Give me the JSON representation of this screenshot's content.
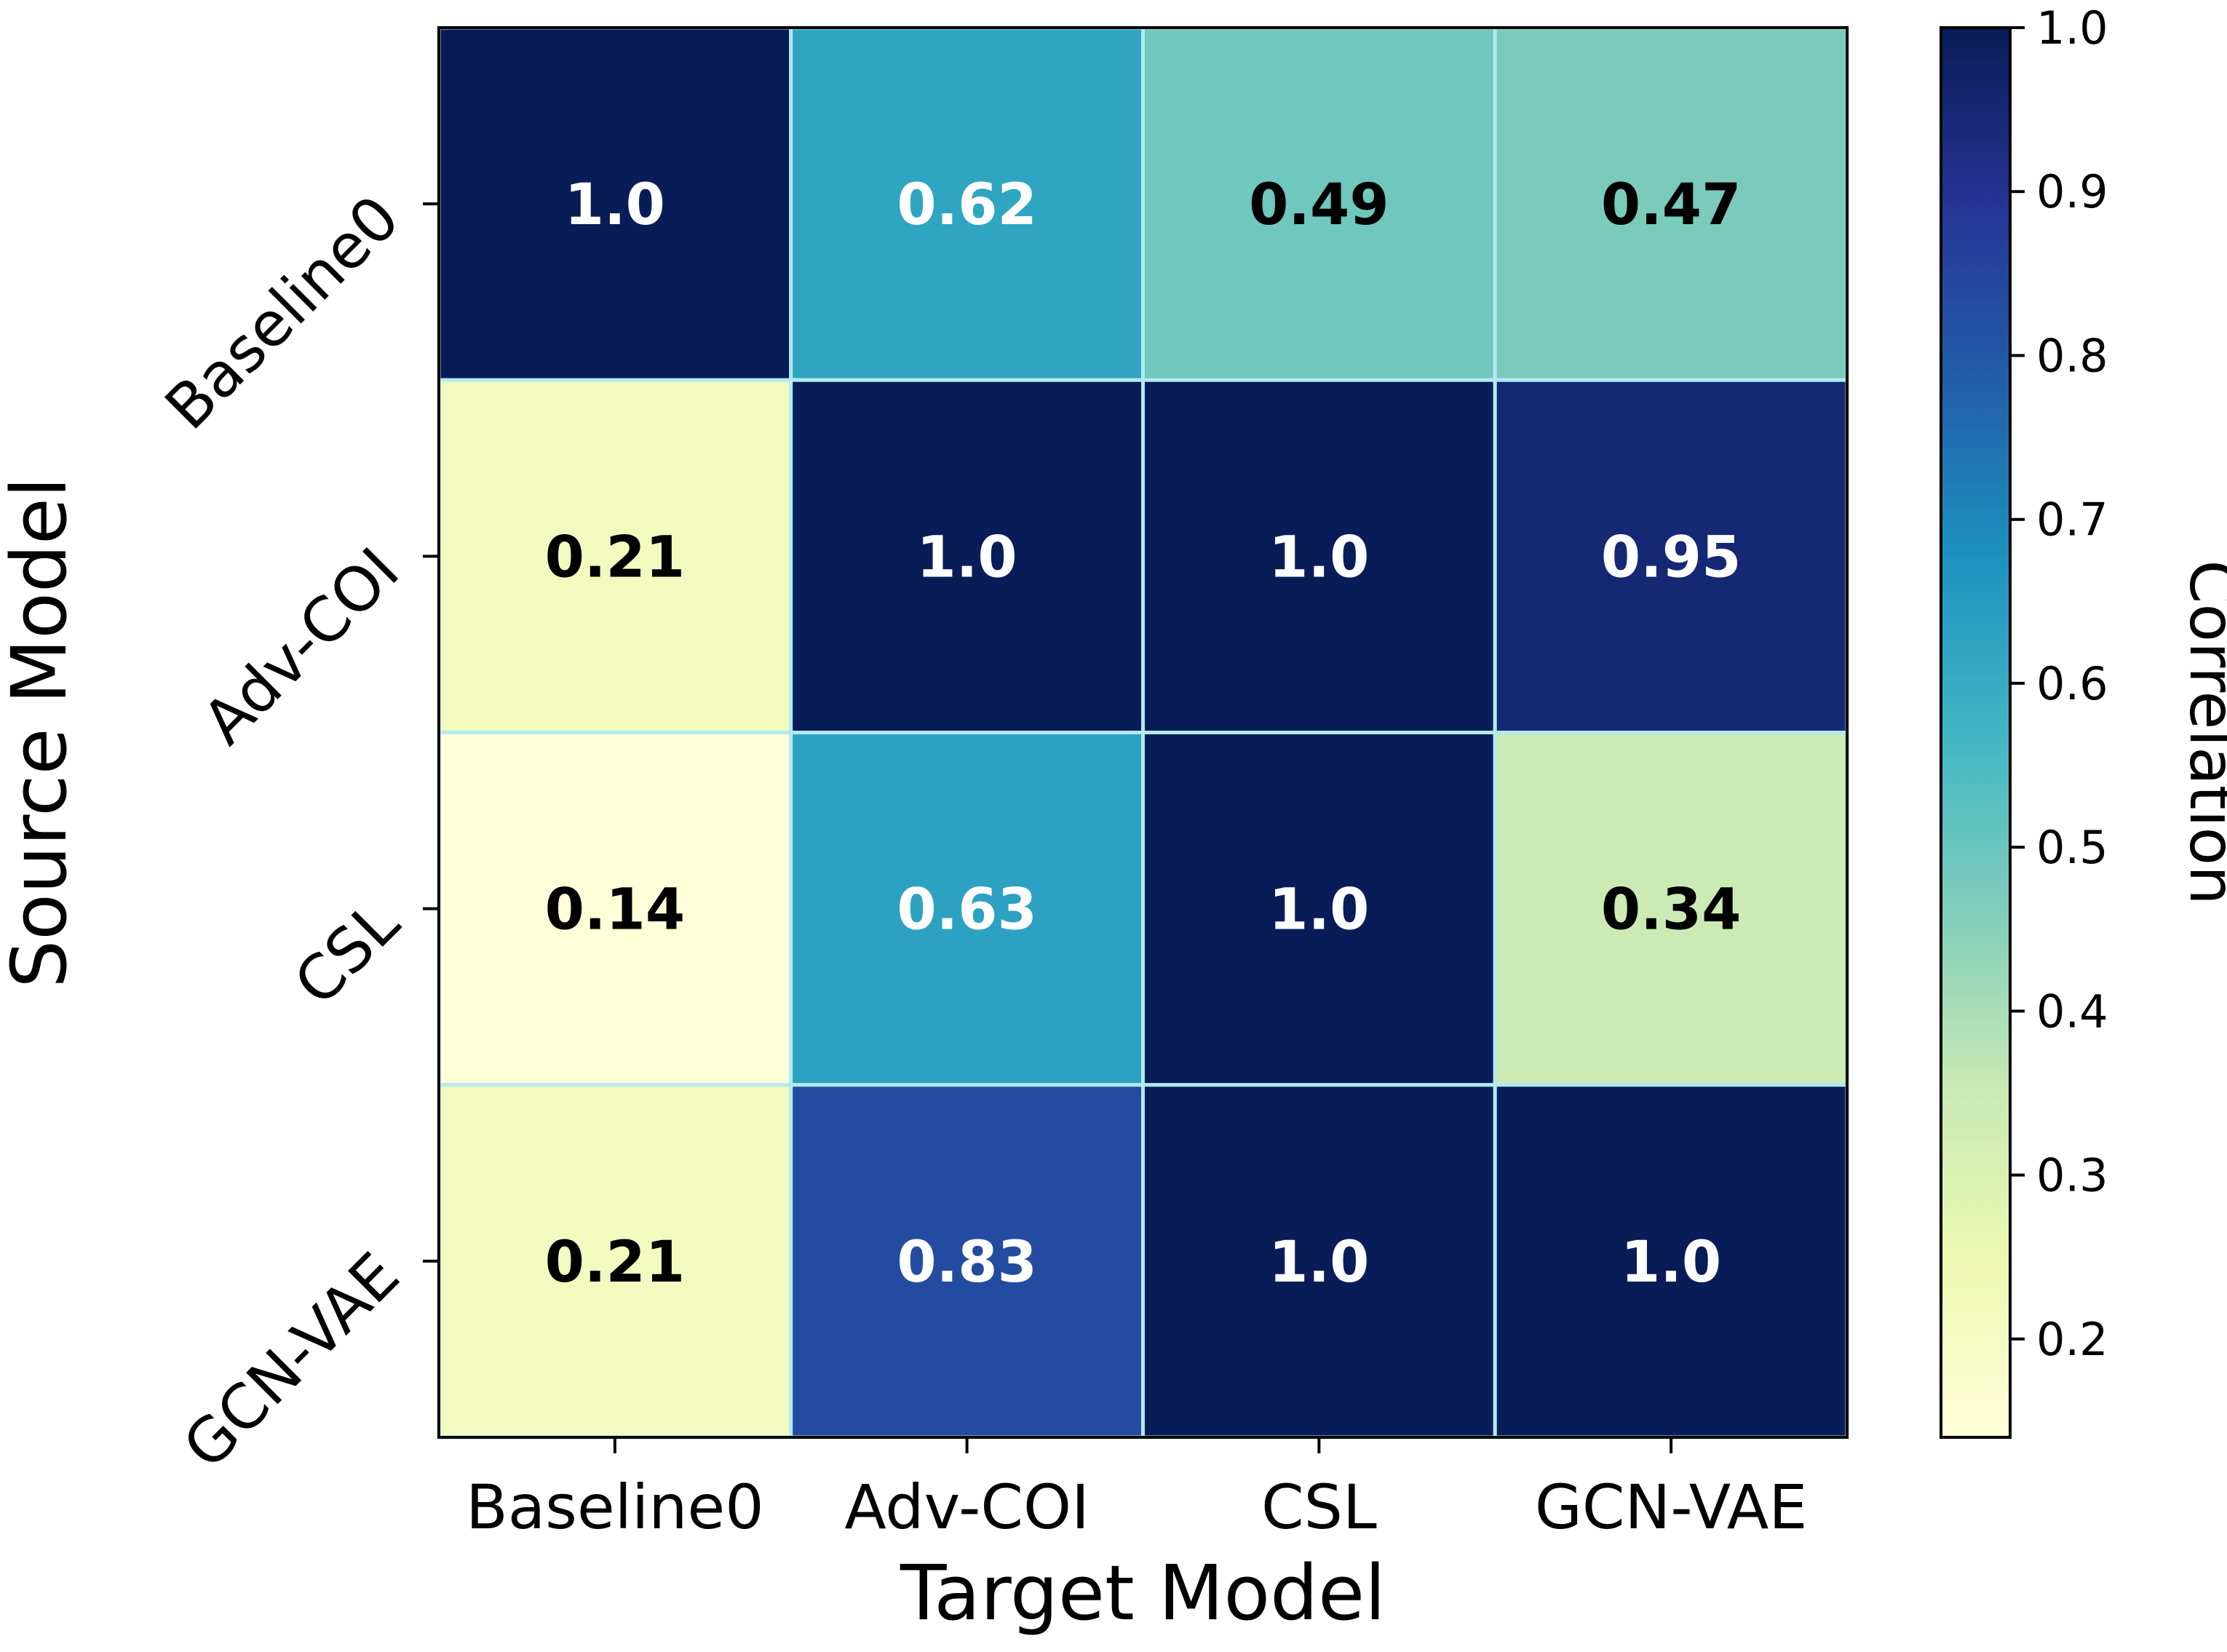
{
  "chart_data": {
    "type": "heatmap",
    "x_categories": [
      "Baseline0",
      "Adv-COI",
      "CSL",
      "GCN-VAE"
    ],
    "y_categories": [
      "Baseline0",
      "Adv-COI",
      "CSL",
      "GCN-VAE"
    ],
    "values": [
      [
        1.0,
        0.62,
        0.49,
        0.47
      ],
      [
        0.21,
        1.0,
        1.0,
        0.95
      ],
      [
        0.14,
        0.63,
        1.0,
        0.34
      ],
      [
        0.21,
        0.83,
        1.0,
        1.0
      ]
    ],
    "cell_labels": [
      [
        "1.0",
        "0.62",
        "0.49",
        "0.47"
      ],
      [
        "0.21",
        "1.0",
        "1.0",
        "0.95"
      ],
      [
        "0.14",
        "0.63",
        "1.0",
        "0.34"
      ],
      [
        "0.21",
        "0.83",
        "1.0",
        "1.0"
      ]
    ],
    "xlabel": "Target Model",
    "ylabel": "Source Model",
    "colorbar": {
      "label": "Correlation",
      "range": [
        0.14,
        1.0
      ],
      "ticks": [
        1.0,
        0.9,
        0.8,
        0.7,
        0.6,
        0.5,
        0.4,
        0.3,
        0.2
      ],
      "tick_labels": [
        "1.0",
        "0.9",
        "0.8",
        "0.7",
        "0.6",
        "0.5",
        "0.4",
        "0.3",
        "0.2"
      ],
      "colormap": "YlGnBu"
    },
    "cell_border_color": "#b2eaf0"
  }
}
